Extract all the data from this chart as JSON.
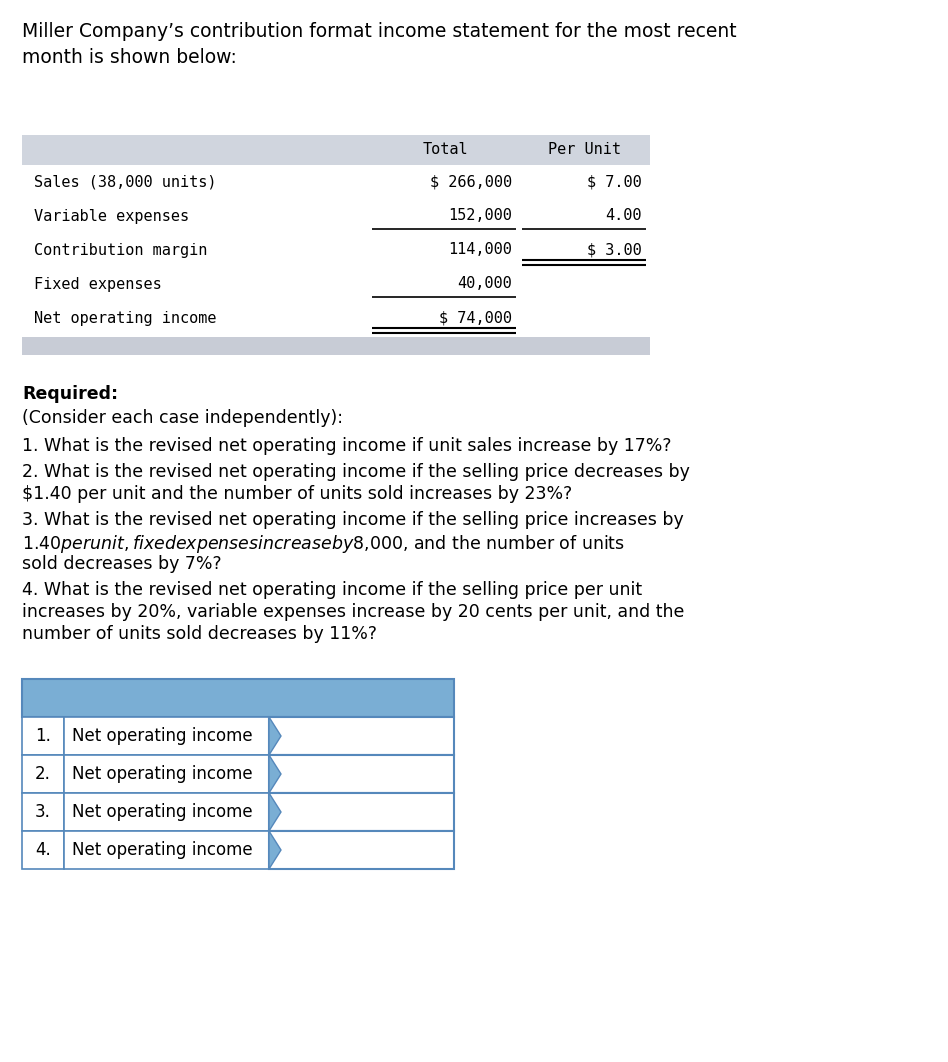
{
  "title_text": "Miller Company’s contribution format income statement for the most recent\nmonth is shown below:",
  "income_table": {
    "header": [
      "",
      "Total",
      "Per Unit"
    ],
    "rows": [
      [
        "Sales (38,000 units)",
        "$ 266,000",
        "$ 7.00"
      ],
      [
        "Variable expenses",
        "152,000",
        "4.00"
      ],
      [
        "Contribution margin",
        "114,000",
        "$ 3.00"
      ],
      [
        "Fixed expenses",
        "40,000",
        ""
      ],
      [
        "Net operating income",
        "$ 74,000",
        ""
      ]
    ],
    "header_bg": "#d0d5de",
    "gray_bar_bg": "#c8ccd6"
  },
  "required_label": "Required:",
  "required_sub": "(Consider each case independently):",
  "questions": [
    "1. What is the revised net operating income if unit sales increase by 17%?",
    "2. What is the revised net operating income if the selling price decreases by\n$1.40 per unit and the number of units sold increases by 23%?",
    "3. What is the revised net operating income if the selling price increases by\n$1.40 per unit, fixed expenses increase by $8,000, and the number of units\nsold decreases by 7%?",
    "4. What is the revised net operating income if the selling price per unit\nincreases by 20%, variable expenses increase by 20 cents per unit, and the\nnumber of units sold decreases by 11%?"
  ],
  "answer_table": {
    "header_bg": "#7aaed4",
    "border_color": "#5588bb",
    "row_labels": [
      "1.",
      "2.",
      "3.",
      "4."
    ],
    "row_texts": [
      "Net operating income",
      "Net operating income",
      "Net operating income",
      "Net operating income"
    ]
  },
  "bg_color": "#ffffff",
  "font_size_title": 13.5,
  "font_size_mono": 11,
  "font_size_body": 12.5,
  "font_size_ans": 12
}
